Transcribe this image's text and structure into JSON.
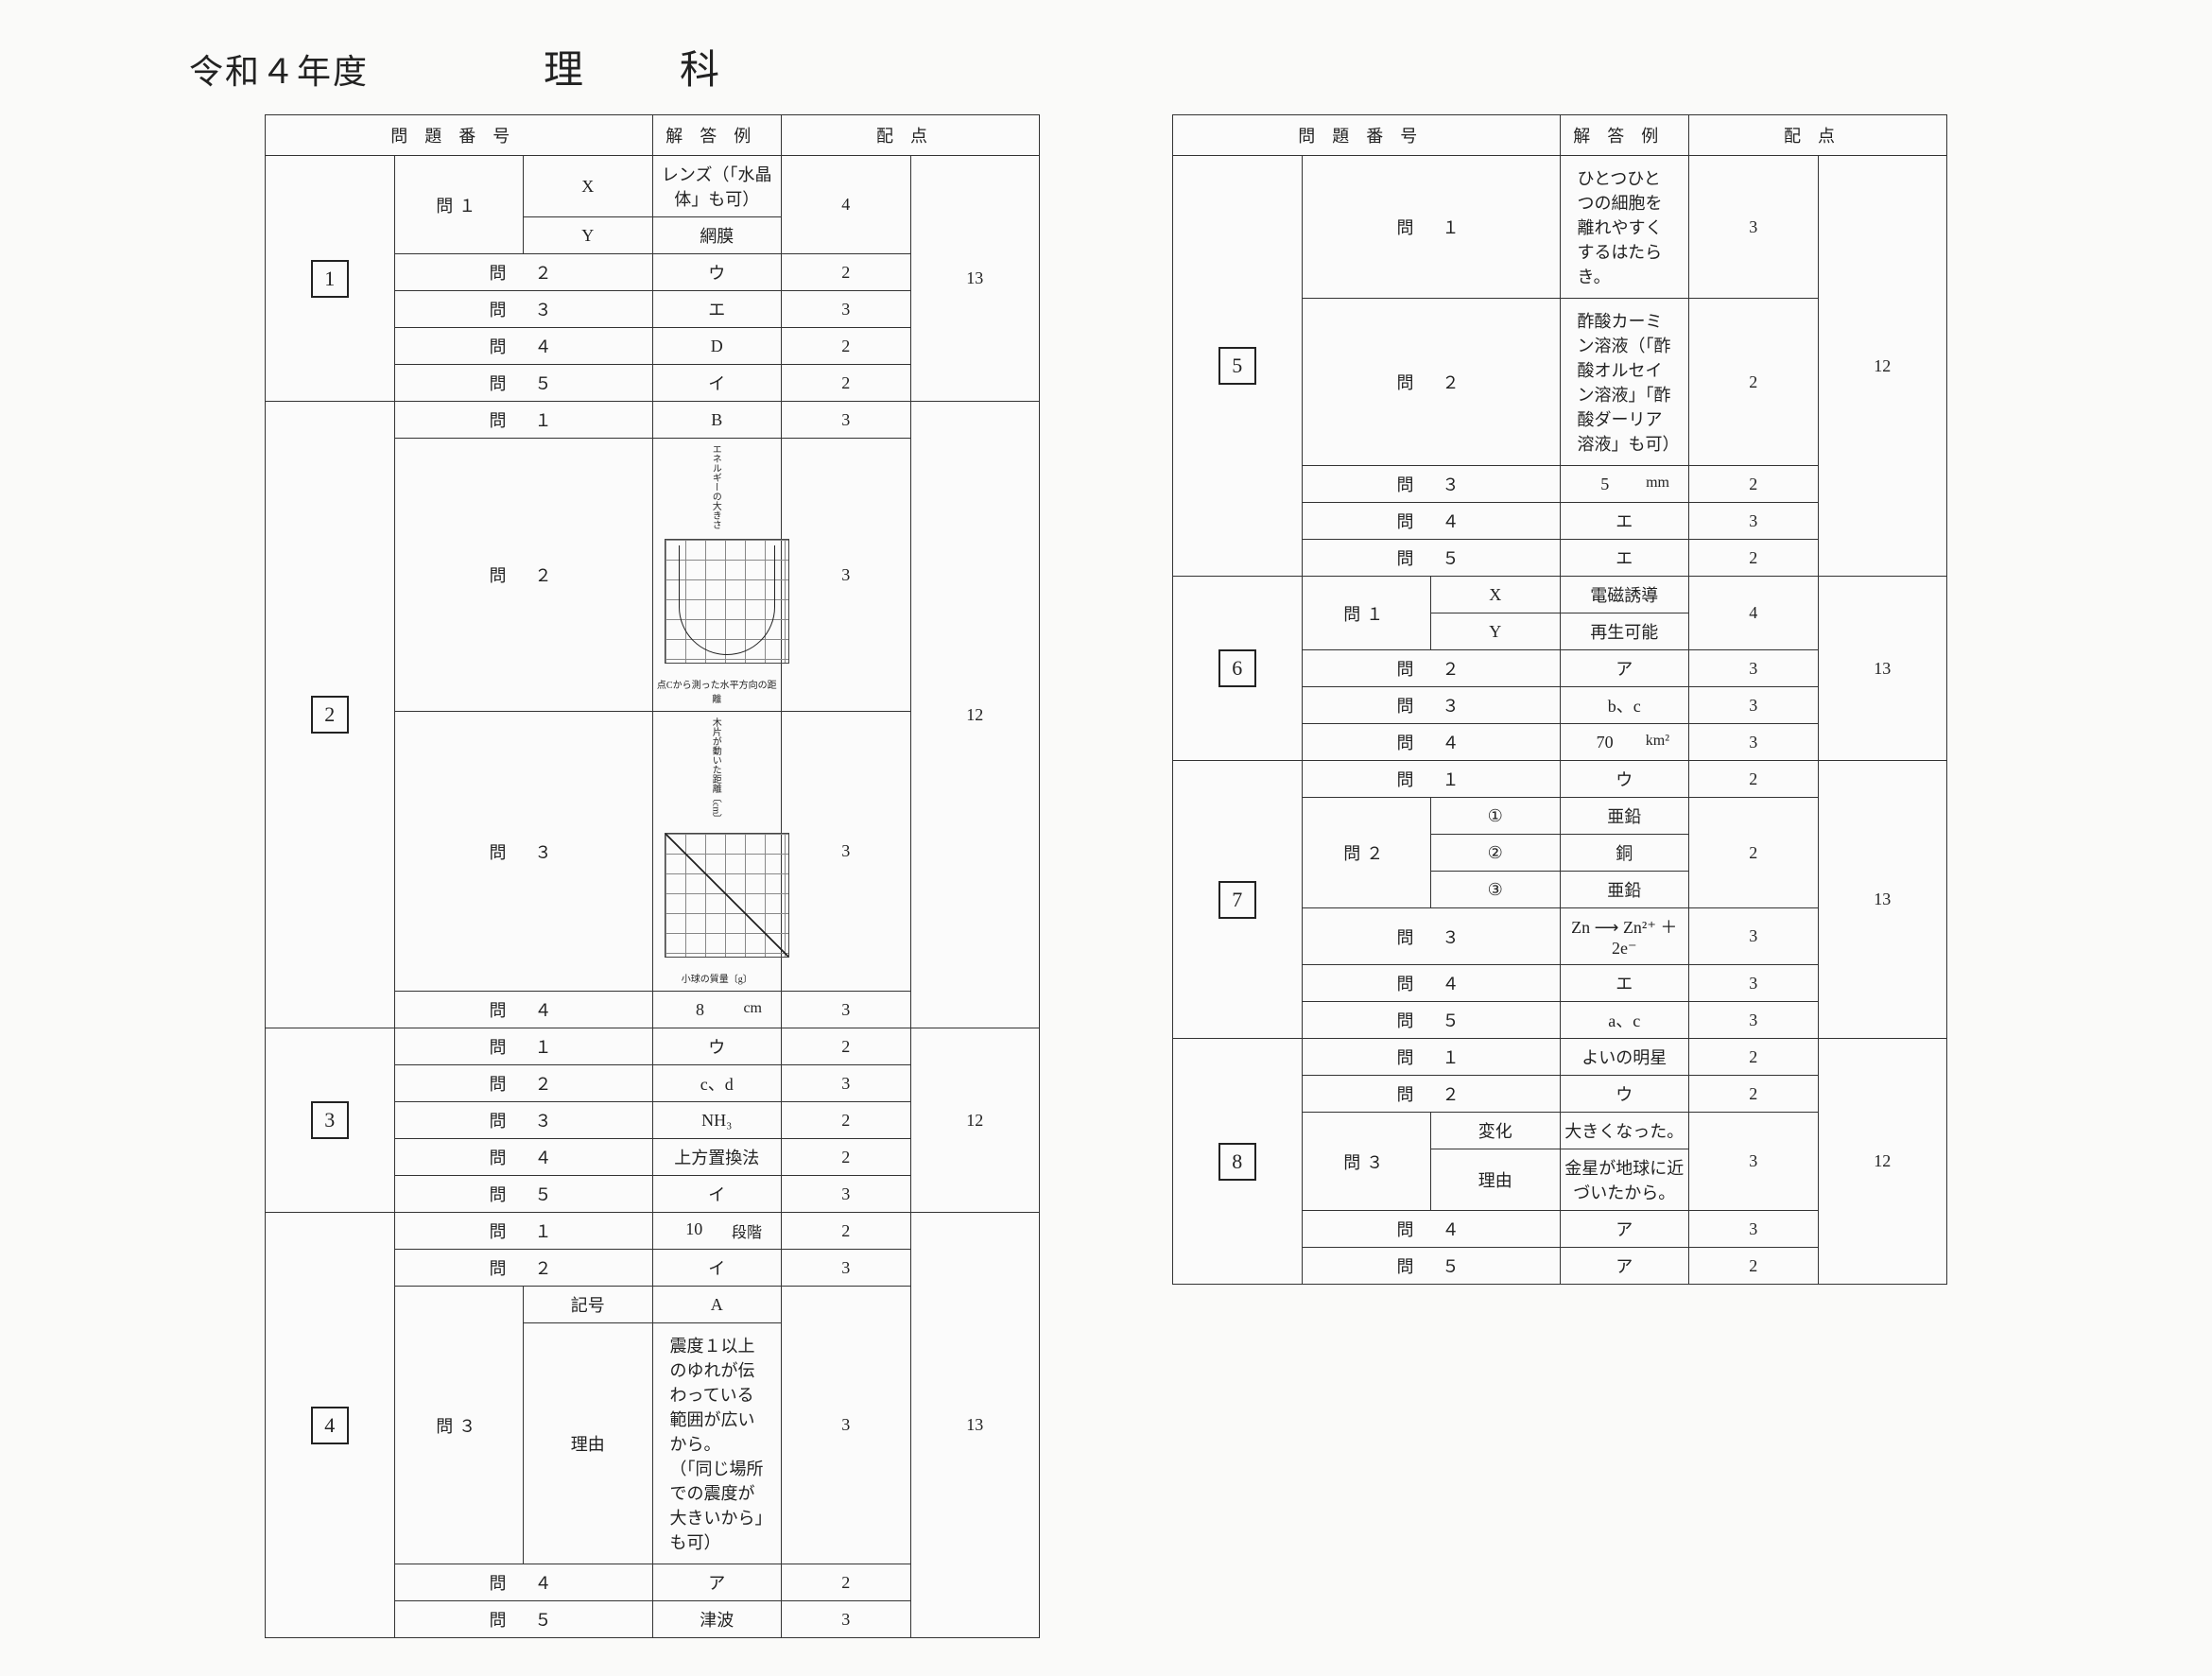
{
  "header": {
    "year": "令和４年度",
    "subject": "理　科"
  },
  "headers": {
    "q": "問題番号",
    "a": "解答例",
    "p": "配点"
  },
  "sec1": {
    "num": "1",
    "total": "13",
    "r1sub": "問１",
    "r1s": "X",
    "r1a": "レンズ（「水晶体」も可）",
    "r1p": "4",
    "r2s": "Y",
    "r2a": "網膜",
    "r3": "問　２",
    "r3a": "ウ",
    "r3p": "2",
    "r4": "問　３",
    "r4a": "エ",
    "r4p": "3",
    "r5": "問　４",
    "r5a": "D",
    "r5p": "2",
    "r6": "問　５",
    "r6a": "イ",
    "r6p": "2"
  },
  "sec2": {
    "num": "2",
    "total": "12",
    "r1": "問　１",
    "r1a": "B",
    "r1p": "3",
    "r2": "問　２",
    "r2p": "3",
    "g1y": "エネルギーの大きさ",
    "g1x": "点Cから測った水平方向の距離",
    "r3": "問　３",
    "r3p": "3",
    "g2y": "木片が動いた距離〔cm〕",
    "g2x": "小球の質量〔g〕",
    "r4": "問　４",
    "r4a": "8",
    "r4u": "cm",
    "r4p": "3"
  },
  "sec3": {
    "num": "3",
    "total": "12",
    "r1": "問　１",
    "r1a": "ウ",
    "r1p": "2",
    "r2": "問　２",
    "r2a": "c、d",
    "r2p": "3",
    "r3": "問　３",
    "r3a": "NH₃",
    "r3p": "2",
    "r4": "問　４",
    "r4a": "上方置換法",
    "r4p": "2",
    "r5": "問　５",
    "r5a": "イ",
    "r5p": "3"
  },
  "sec4": {
    "num": "4",
    "total": "13",
    "r1": "問　１",
    "r1a": "10",
    "r1u": "段階",
    "r1p": "2",
    "r2": "問　２",
    "r2a": "イ",
    "r2p": "3",
    "r3sub": "問３",
    "r3s1": "記号",
    "r3a1": "A",
    "r3s2": "理由",
    "r3a2": "震度１以上のゆれが伝わっている範囲が広いから。\n（「同じ場所での震度が大きいから」も可）",
    "r3p": "3",
    "r4": "問　４",
    "r4a": "ア",
    "r4p": "2",
    "r5": "問　５",
    "r5a": "津波",
    "r5p": "3"
  },
  "sec5": {
    "num": "5",
    "total": "12",
    "r1": "問　１",
    "r1a": "ひとつひとつの細胞を離れやすくするはたらき。",
    "r1p": "3",
    "r2": "問　２",
    "r2a": "酢酸カーミン溶液（「酢酸オルセイン溶液」「酢酸ダーリア溶液」も可）",
    "r2p": "2",
    "r3": "問　３",
    "r3a": "5",
    "r3u": "mm",
    "r3p": "2",
    "r4": "問　４",
    "r4a": "エ",
    "r4p": "3",
    "r5": "問　５",
    "r5a": "エ",
    "r5p": "2"
  },
  "sec6": {
    "num": "6",
    "total": "13",
    "r1sub": "問１",
    "r1s1": "X",
    "r1a1": "電磁誘導",
    "r1s2": "Y",
    "r1a2": "再生可能",
    "r1p": "4",
    "r2": "問　２",
    "r2a": "ア",
    "r2p": "3",
    "r3": "問　３",
    "r3a": "b、c",
    "r3p": "3",
    "r4": "問　４",
    "r4a": "70",
    "r4u": "km²",
    "r4p": "3"
  },
  "sec7": {
    "num": "7",
    "total": "13",
    "r1": "問　１",
    "r1a": "ウ",
    "r1p": "2",
    "r2sub": "問２",
    "r2s1": "①",
    "r2a1": "亜鉛",
    "r2s2": "②",
    "r2a2": "銅",
    "r2s3": "③",
    "r2a3": "亜鉛",
    "r2p": "2",
    "r3": "問　３",
    "r3a": "Zn ⟶ Zn²⁺ ＋ 2e⁻",
    "r3p": "3",
    "r4": "問　４",
    "r4a": "エ",
    "r4p": "3",
    "r5": "問　５",
    "r5a": "a、c",
    "r5p": "3"
  },
  "sec8": {
    "num": "8",
    "total": "12",
    "r1": "問　１",
    "r1a": "よいの明星",
    "r1p": "2",
    "r2": "問　２",
    "r2a": "ウ",
    "r2p": "2",
    "r3sub": "問３",
    "r3s1": "変化",
    "r3a1": "大きくなった。",
    "r3s2": "理由",
    "r3a2": "金星が地球に近づいたから。",
    "r3p": "3",
    "r4": "問　４",
    "r4a": "ア",
    "r4p": "3",
    "r5": "問　５",
    "r5a": "ア",
    "r5p": "2"
  }
}
